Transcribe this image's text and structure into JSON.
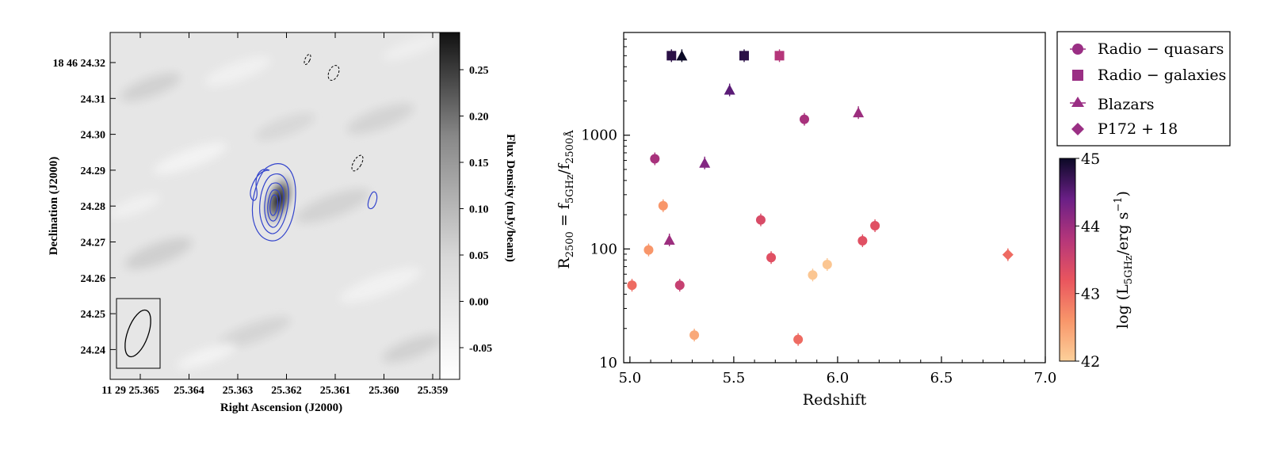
{
  "chart_data": [
    {
      "type": "heatmap",
      "title": "",
      "xlabel": "Right Ascension (J2000)",
      "ylabel": "Declination (J2000)",
      "x_ticks": [
        "11 29 25.365",
        "25.364",
        "25.363",
        "25.362",
        "25.361",
        "25.360",
        "25.359"
      ],
      "y_ticks": [
        "18 46 24.32",
        "24.31",
        "24.30",
        "24.29",
        "24.28",
        "24.27",
        "24.26",
        "24.25",
        "24.24"
      ],
      "colorbar": {
        "label": "Flux Density (mJy/beam)",
        "ticks": [
          "0.25",
          "0.20",
          "0.15",
          "0.10",
          "0.05",
          "0.00",
          "-0.05"
        ],
        "range": [
          -0.075,
          0.29
        ]
      },
      "source": {
        "ra_index": 3.2,
        "dec": 24.281,
        "peak_mjy_beam": 0.29
      },
      "colors": {
        "contour": "#3344cc",
        "negative_contour": "#000000"
      }
    },
    {
      "type": "scatter",
      "title": "",
      "xlabel": "Redshift",
      "ylabel": "R2500 = f5GHz/f2500Å",
      "ylabel_parts": {
        "main": "R",
        "sub1": "2500",
        "eq": " = f",
        "sub2": "5GHz",
        "slash": "/f",
        "sub3": "2500Å"
      },
      "xlim": [
        4.97,
        7.0
      ],
      "ylim": [
        10,
        8000
      ],
      "yscale": "log",
      "x_ticks": [
        "5.0",
        "5.5",
        "6.0",
        "6.5",
        "7.0"
      ],
      "y_ticks": [
        "10",
        "100",
        "1000"
      ],
      "legend": {
        "position": "outside-top-right",
        "entries": [
          {
            "marker": "circle",
            "label": "Radio − quasars"
          },
          {
            "marker": "square",
            "label": "Radio − galaxies"
          },
          {
            "marker": "triangle",
            "label": "Blazars"
          },
          {
            "marker": "diamond",
            "label": "P172 + 18"
          }
        ]
      },
      "colorbar": {
        "label": "log (L5GHz/erg s−1)",
        "label_parts": {
          "pre": "log (L",
          "sub": "5GHz",
          "mid": "/erg s",
          "sup": "−1",
          "post": ")"
        },
        "ticks": [
          "45",
          "44",
          "43",
          "42"
        ],
        "range": [
          42,
          45
        ]
      },
      "series": [
        {
          "name": "Radio − quasars",
          "marker": "circle",
          "points": [
            {
              "x": 5.01,
              "y": 48,
              "logL": 43.0
            },
            {
              "x": 5.09,
              "y": 98,
              "logL": 42.6
            },
            {
              "x": 5.12,
              "y": 620,
              "logL": 43.9
            },
            {
              "x": 5.16,
              "y": 240,
              "logL": 42.6
            },
            {
              "x": 5.24,
              "y": 48,
              "logL": 43.6
            },
            {
              "x": 5.31,
              "y": 17.5,
              "logL": 42.4
            },
            {
              "x": 5.63,
              "y": 180,
              "logL": 43.4
            },
            {
              "x": 5.68,
              "y": 84,
              "logL": 43.3
            },
            {
              "x": 5.81,
              "y": 16,
              "logL": 43.0
            },
            {
              "x": 5.84,
              "y": 1380,
              "logL": 43.9
            },
            {
              "x": 5.88,
              "y": 59,
              "logL": 42.1
            },
            {
              "x": 5.95,
              "y": 73,
              "logL": 42.1
            },
            {
              "x": 6.12,
              "y": 118,
              "logL": 43.3
            },
            {
              "x": 6.18,
              "y": 160,
              "logL": 43.3
            }
          ]
        },
        {
          "name": "Radio − galaxies",
          "marker": "square",
          "points": [
            {
              "x": 5.2,
              "y": 5000,
              "logL": 44.8
            },
            {
              "x": 5.55,
              "y": 5000,
              "logL": 44.8
            },
            {
              "x": 5.72,
              "y": 5000,
              "logL": 43.8
            }
          ]
        },
        {
          "name": "Blazars",
          "marker": "triangle",
          "points": [
            {
              "x": 5.19,
              "y": 120,
              "logL": 44.0
            },
            {
              "x": 5.25,
              "y": 5000,
              "logL": 45.0
            },
            {
              "x": 5.36,
              "y": 570,
              "logL": 44.2
            },
            {
              "x": 5.48,
              "y": 2500,
              "logL": 44.5
            },
            {
              "x": 6.1,
              "y": 1580,
              "logL": 44.0
            }
          ]
        },
        {
          "name": "P172 + 18",
          "marker": "diamond",
          "points": [
            {
              "x": 6.82,
              "y": 89,
              "logL": 43.0
            }
          ]
        }
      ]
    }
  ]
}
